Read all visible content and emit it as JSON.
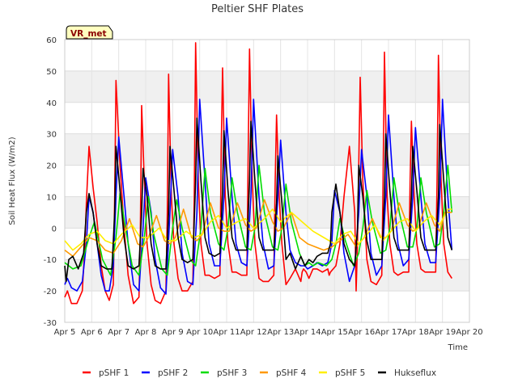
{
  "chart_data": {
    "type": "line",
    "title": "Peltier SHF Plates",
    "xlabel": "Time",
    "ylabel": "Soil Heat Flux (W/m2)",
    "badge": "VR_met",
    "xlim": [
      5,
      20
    ],
    "ylim": [
      -30,
      60
    ],
    "x_ticks": [
      5,
      6,
      7,
      8,
      9,
      10,
      11,
      12,
      13,
      14,
      15,
      16,
      17,
      18,
      19,
      20
    ],
    "x_tick_labels": [
      "Apr 5",
      "Apr 6",
      "Apr 7",
      "Apr 8",
      "Apr 9",
      "Apr 10",
      "Apr 11",
      "Apr 12",
      "Apr 13",
      "Apr 14",
      "Apr 15",
      "Apr 16",
      "Apr 17",
      "Apr 18",
      "Apr 19",
      "Apr 20"
    ],
    "y_ticks": [
      -30,
      -20,
      -10,
      0,
      10,
      20,
      30,
      40,
      50,
      60
    ],
    "y_tick_labels": [
      "-30",
      "-20",
      "-10",
      "0",
      "10",
      "20",
      "30",
      "40",
      "50",
      "60"
    ],
    "grid": true,
    "bands": [
      [
        -20,
        -10
      ],
      [
        0,
        10
      ],
      [
        20,
        30
      ],
      [
        40,
        50
      ]
    ],
    "legend_position": "bottom",
    "series": [
      {
        "name": "pSHF 1",
        "color": "#ff0000",
        "x": [
          5.0,
          5.1,
          5.25,
          5.45,
          5.65,
          5.75,
          5.8,
          5.9,
          6.05,
          6.2,
          6.35,
          6.5,
          6.65,
          6.8,
          6.85,
          6.9,
          7.05,
          7.2,
          7.35,
          7.55,
          7.75,
          7.8,
          7.85,
          7.95,
          8.05,
          8.2,
          8.35,
          8.55,
          8.75,
          8.8,
          8.85,
          8.95,
          9.05,
          9.2,
          9.35,
          9.55,
          9.75,
          9.8,
          9.85,
          9.95,
          10.05,
          10.2,
          10.35,
          10.55,
          10.75,
          10.8,
          10.85,
          10.95,
          11.05,
          11.2,
          11.35,
          11.55,
          11.75,
          11.8,
          11.85,
          11.95,
          12.05,
          12.2,
          12.35,
          12.55,
          12.75,
          12.8,
          12.85,
          12.95,
          13.05,
          13.2,
          13.35,
          13.55,
          13.75,
          13.8,
          13.85,
          13.95,
          14.05,
          14.2,
          14.35,
          14.55,
          14.75,
          14.8,
          14.85,
          14.95,
          15.05,
          15.2,
          15.35,
          15.55,
          15.75,
          15.8,
          15.85,
          15.95,
          16.05,
          16.2,
          16.35,
          16.55,
          16.75,
          16.8,
          16.85,
          16.95,
          17.05,
          17.2,
          17.35,
          17.55,
          17.75,
          17.8,
          17.85,
          17.95,
          18.05,
          18.2,
          18.35,
          18.55,
          18.75,
          18.8,
          18.85,
          18.95,
          19.05,
          19.2,
          19.35
        ],
        "y": [
          -22,
          -20,
          -24,
          -24,
          -20,
          -5,
          8,
          26,
          13,
          2,
          -12,
          -20,
          -23,
          -18,
          10,
          47,
          20,
          0,
          -15,
          -24,
          -22,
          -3,
          39,
          15,
          -5,
          -18,
          -23,
          -24,
          -20,
          5,
          49,
          10,
          -5,
          -16,
          -20,
          -20,
          -17,
          10,
          59,
          15,
          -5,
          -15,
          -15,
          -16,
          -15,
          25,
          51,
          10,
          -5,
          -14,
          -14,
          -15,
          -15,
          25,
          57,
          15,
          -5,
          -16,
          -17,
          -17,
          -15,
          15,
          36,
          10,
          -5,
          -18,
          -16,
          -13,
          -17,
          -14,
          -13,
          -14,
          -16,
          -13,
          -13,
          -14,
          -13,
          -15,
          -14,
          -13,
          -12,
          -5,
          10,
          26,
          5,
          -20,
          -5,
          48,
          15,
          -10,
          -17,
          -18,
          -15,
          15,
          56,
          10,
          -5,
          -14,
          -15,
          -14,
          -14,
          15,
          34,
          10,
          -5,
          -13,
          -14,
          -14,
          -14,
          15,
          55,
          15,
          -5,
          -14,
          -16
        ]
      },
      {
        "name": "pSHF 2",
        "color": "#0000ff",
        "x": [
          5.0,
          5.1,
          5.25,
          5.45,
          5.65,
          5.8,
          5.9,
          6.05,
          6.2,
          6.35,
          6.5,
          6.65,
          6.8,
          6.9,
          7.0,
          7.2,
          7.35,
          7.55,
          7.75,
          7.9,
          8.0,
          8.2,
          8.35,
          8.55,
          8.75,
          8.9,
          9.0,
          9.2,
          9.35,
          9.55,
          9.75,
          9.9,
          10.0,
          10.2,
          10.35,
          10.55,
          10.75,
          10.9,
          11.0,
          11.2,
          11.35,
          11.55,
          11.75,
          11.9,
          12.0,
          12.2,
          12.35,
          12.55,
          12.75,
          12.9,
          13.0,
          13.2,
          13.35,
          13.55,
          13.75,
          13.9,
          14.0,
          14.2,
          14.35,
          14.55,
          14.75,
          14.9,
          15.0,
          15.2,
          15.35,
          15.55,
          15.75,
          15.9,
          16.0,
          16.2,
          16.35,
          16.55,
          16.75,
          16.9,
          17.0,
          17.2,
          17.35,
          17.55,
          17.75,
          17.9,
          18.0,
          18.2,
          18.35,
          18.55,
          18.75,
          18.9,
          19.0,
          19.2,
          19.35
        ],
        "y": [
          -18,
          -16,
          -19,
          -20,
          -17,
          -5,
          10,
          5,
          -5,
          -15,
          -20,
          -20,
          -12,
          10,
          29,
          10,
          -5,
          -18,
          -20,
          0,
          16,
          5,
          -10,
          -19,
          -21,
          5,
          25,
          10,
          -8,
          -17,
          -18,
          5,
          41,
          15,
          -5,
          -12,
          -12,
          10,
          35,
          10,
          -5,
          -11,
          -12,
          10,
          41,
          10,
          -5,
          -13,
          -12,
          10,
          28,
          5,
          -7,
          -11,
          -12,
          -12,
          -13,
          -12,
          -11,
          -12,
          -11,
          -5,
          12,
          5,
          -8,
          -17,
          -12,
          5,
          25,
          10,
          -8,
          -15,
          -12,
          10,
          36,
          10,
          -5,
          -12,
          -10,
          10,
          32,
          10,
          -5,
          -11,
          -11,
          10,
          41,
          10,
          -7
        ]
      },
      {
        "name": "pSHF 3",
        "color": "#00dd00",
        "x": [
          5.0,
          5.3,
          5.6,
          5.9,
          6.1,
          6.4,
          6.7,
          6.9,
          7.05,
          7.25,
          7.5,
          7.75,
          7.95,
          8.1,
          8.3,
          8.6,
          8.8,
          9.0,
          9.15,
          9.35,
          9.65,
          9.85,
          10.05,
          10.2,
          10.4,
          10.7,
          10.9,
          11.05,
          11.2,
          11.4,
          11.7,
          11.9,
          12.05,
          12.2,
          12.4,
          12.7,
          12.9,
          13.05,
          13.2,
          13.4,
          13.7,
          13.9,
          14.05,
          14.2,
          14.4,
          14.7,
          14.9,
          15.05,
          15.2,
          15.4,
          15.7,
          15.9,
          16.05,
          16.2,
          16.4,
          16.7,
          16.9,
          17.05,
          17.2,
          17.4,
          17.7,
          17.9,
          18.05,
          18.2,
          18.4,
          18.7,
          18.9,
          19.05,
          19.2,
          19.35
        ],
        "y": [
          -11,
          -13,
          -12,
          -3,
          2,
          -10,
          -15,
          -3,
          11,
          0,
          -12,
          -15,
          -3,
          10,
          -2,
          -13,
          -15,
          0,
          9,
          0,
          -10,
          -12,
          0,
          19,
          5,
          -5,
          -7,
          0,
          16,
          5,
          -6,
          -7,
          0,
          20,
          5,
          -6,
          -7,
          0,
          14,
          2,
          -8,
          -12,
          -11,
          -12,
          -11,
          -12,
          -10,
          -5,
          3,
          -4,
          -12,
          -8,
          0,
          12,
          2,
          -8,
          -7,
          0,
          16,
          5,
          -6,
          -6,
          0,
          16,
          5,
          -6,
          -5,
          5,
          20,
          5
        ]
      },
      {
        "name": "pSHF 4",
        "color": "#ff9900",
        "x": [
          5.0,
          5.3,
          5.6,
          5.9,
          6.2,
          6.5,
          6.8,
          7.1,
          7.4,
          7.7,
          7.9,
          8.1,
          8.4,
          8.7,
          8.9,
          9.1,
          9.4,
          9.7,
          9.9,
          10.1,
          10.4,
          10.7,
          10.9,
          11.1,
          11.4,
          11.7,
          11.9,
          12.1,
          12.4,
          12.7,
          12.9,
          13.1,
          13.4,
          13.7,
          14.0,
          14.3,
          14.6,
          14.9,
          15.2,
          15.5,
          15.8,
          16.1,
          16.4,
          16.7,
          16.9,
          17.1,
          17.4,
          17.7,
          17.9,
          18.1,
          18.4,
          18.7,
          18.9,
          19.1,
          19.35
        ],
        "y": [
          -7,
          -9,
          -6,
          -3,
          -4,
          -7,
          -8,
          -4,
          3,
          -5,
          -6,
          -3,
          4,
          -4,
          -5,
          -3,
          6,
          -3,
          -4,
          -2,
          8,
          0,
          -1,
          -1,
          8,
          1,
          -1,
          0,
          9,
          2,
          -1,
          0,
          5,
          -3,
          -5,
          -6,
          -7,
          -6,
          -4,
          -2,
          -6,
          -3,
          3,
          -3,
          -3,
          -1,
          8,
          1,
          -1,
          0,
          8,
          1,
          -1,
          5,
          5
        ]
      },
      {
        "name": "pSHF 5",
        "color": "#ffee00",
        "x": [
          5.0,
          5.3,
          5.6,
          5.9,
          6.2,
          6.5,
          6.8,
          7.1,
          7.5,
          7.8,
          8.1,
          8.5,
          8.8,
          9.1,
          9.5,
          9.8,
          10.1,
          10.4,
          10.7,
          11.0,
          11.4,
          11.7,
          12.0,
          12.4,
          12.7,
          13.0,
          13.4,
          13.8,
          14.2,
          14.6,
          15.0,
          15.3,
          15.6,
          15.9,
          16.2,
          16.5,
          16.8,
          17.1,
          17.4,
          17.7,
          18.0,
          18.3,
          18.6,
          18.9,
          19.2,
          19.35
        ],
        "y": [
          -4,
          -7,
          -5,
          -2,
          -1,
          -4,
          -5,
          -2,
          1,
          -3,
          -3,
          0,
          -4,
          -4,
          -1,
          -3,
          -2,
          2,
          4,
          0,
          2,
          3,
          0,
          3,
          6,
          2,
          5,
          2,
          -1,
          -3,
          -5,
          -2,
          -1,
          -5,
          -2,
          1,
          -4,
          -1,
          2,
          3,
          -1,
          2,
          4,
          1,
          6,
          6
        ]
      },
      {
        "name": "Hukseflux",
        "color": "#000000",
        "x": [
          5.0,
          5.05,
          5.15,
          5.3,
          5.5,
          5.7,
          5.8,
          5.9,
          6.05,
          6.2,
          6.35,
          6.55,
          6.75,
          6.85,
          6.9,
          7.05,
          7.2,
          7.35,
          7.55,
          7.75,
          7.85,
          7.9,
          8.05,
          8.2,
          8.35,
          8.55,
          8.75,
          8.85,
          8.9,
          9.05,
          9.2,
          9.35,
          9.55,
          9.75,
          9.85,
          9.9,
          10.05,
          10.2,
          10.35,
          10.55,
          10.75,
          10.85,
          10.9,
          11.05,
          11.2,
          11.35,
          11.55,
          11.75,
          11.85,
          11.9,
          12.05,
          12.2,
          12.35,
          12.55,
          12.75,
          12.85,
          12.9,
          13.05,
          13.2,
          13.35,
          13.55,
          13.75,
          13.9,
          14.05,
          14.2,
          14.35,
          14.55,
          14.75,
          14.85,
          14.9,
          15.05,
          15.2,
          15.35,
          15.55,
          15.75,
          15.85,
          15.9,
          16.05,
          16.2,
          16.35,
          16.55,
          16.75,
          16.85,
          16.9,
          17.05,
          17.2,
          17.35,
          17.55,
          17.75,
          17.85,
          17.9,
          18.05,
          18.2,
          18.35,
          18.55,
          18.75,
          18.85,
          18.9,
          19.05,
          19.2,
          19.35
        ],
        "y": [
          -12,
          -17,
          -10,
          -9,
          -13,
          -8,
          5,
          11,
          5,
          -5,
          -12,
          -13,
          -13,
          5,
          26,
          12,
          -3,
          -12,
          -13,
          -12,
          5,
          19,
          10,
          -5,
          -12,
          -13,
          -13,
          5,
          26,
          12,
          -3,
          -10,
          -11,
          -10,
          15,
          35,
          15,
          -3,
          -8,
          -9,
          -8,
          12,
          31,
          12,
          -3,
          -7,
          -7,
          -7,
          15,
          34,
          15,
          -3,
          -7,
          -7,
          -7,
          8,
          23,
          8,
          -10,
          -8,
          -13,
          -9,
          -12,
          -10,
          -11,
          -9,
          -8,
          -8,
          -5,
          5,
          14,
          5,
          -5,
          -10,
          -12,
          0,
          20,
          10,
          -4,
          -10,
          -10,
          -10,
          10,
          30,
          12,
          -3,
          -7,
          -7,
          -7,
          10,
          26,
          12,
          -3,
          -7,
          -7,
          -7,
          10,
          33,
          15,
          -3,
          -7
        ]
      }
    ]
  }
}
